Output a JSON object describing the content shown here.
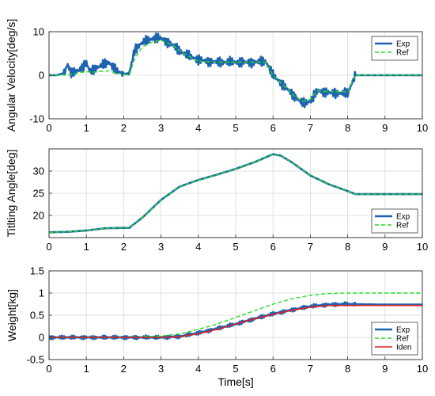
{
  "colors": {
    "exp": "#1f63b0",
    "ref": "#22dd22",
    "iden": "#e02020"
  },
  "chart_data": [
    {
      "type": "line",
      "ylabel": "Angular Velocity[deg/s]",
      "xlabel": "",
      "xlim": [
        0,
        10
      ],
      "ylim": [
        -10,
        10
      ],
      "xticks": [
        "0",
        "1",
        "2",
        "3",
        "4",
        "5",
        "6",
        "7",
        "8",
        "9",
        "10"
      ],
      "yticks": [
        {
          "value": -10,
          "label": "-10"
        },
        {
          "value": 0,
          "label": "0"
        },
        {
          "value": 10,
          "label": "10"
        }
      ],
      "grid": true,
      "legend_position": "top-right",
      "series": [
        {
          "name": "Exp",
          "style": "solid",
          "x": [
            0,
            0.2,
            0.4,
            0.5,
            0.6,
            0.8,
            1.0,
            1.1,
            1.2,
            1.4,
            1.6,
            1.8,
            2.0,
            2.15,
            2.3,
            2.5,
            2.8,
            3.0,
            3.3,
            3.6,
            4.0,
            4.5,
            5.0,
            5.5,
            5.8,
            6.0,
            6.3,
            6.6,
            6.8,
            7.0,
            7.2,
            7.5,
            8.0,
            8.2,
            8.5,
            9.0,
            10.0
          ],
          "y": [
            0,
            0,
            0.5,
            2.5,
            0.3,
            1.2,
            2.8,
            0.8,
            1.5,
            2.2,
            3.0,
            1.0,
            0.3,
            0.5,
            6.0,
            7.5,
            8.5,
            8.5,
            7.0,
            5.0,
            3.5,
            3.0,
            3.0,
            3.0,
            3.2,
            0,
            -2.5,
            -5.0,
            -6.5,
            -6.0,
            -3.5,
            -4.0,
            -4.2,
            0,
            0,
            0,
            0
          ],
          "noise": 2.5
        },
        {
          "name": "Ref",
          "style": "dashed",
          "x": [
            0,
            0.4,
            0.6,
            0.8,
            1.0,
            1.2,
            1.4,
            1.6,
            1.8,
            2.0,
            2.15,
            2.3,
            2.5,
            2.8,
            3.0,
            3.3,
            3.6,
            4.0,
            4.5,
            5.0,
            5.5,
            5.8,
            6.0,
            6.3,
            6.6,
            6.8,
            7.0,
            7.2,
            7.5,
            8.0,
            8.2,
            8.5,
            9.0,
            10.0
          ],
          "y": [
            0,
            0,
            0.2,
            0.6,
            0.8,
            0.7,
            0.9,
            1.0,
            0.5,
            0.2,
            0,
            4.0,
            6.5,
            7.8,
            8.0,
            7.0,
            5.0,
            3.2,
            3.0,
            3.0,
            3.0,
            3.0,
            0,
            -2.5,
            -5.0,
            -6.0,
            -5.5,
            -3.5,
            -3.8,
            -3.8,
            0,
            0,
            0,
            0
          ],
          "noise": 0
        }
      ]
    },
    {
      "type": "line",
      "ylabel": "Titlting Angle[deg]",
      "xlabel": "",
      "xlim": [
        0,
        10
      ],
      "ylim": [
        15,
        35
      ],
      "xticks": [
        "0",
        "1",
        "2",
        "3",
        "4",
        "5",
        "6",
        "7",
        "8",
        "9",
        "10"
      ],
      "yticks": [
        {
          "value": 20,
          "label": "20"
        },
        {
          "value": 25,
          "label": "25"
        },
        {
          "value": 30,
          "label": "30"
        }
      ],
      "grid": true,
      "legend_position": "bottom-right",
      "series": [
        {
          "name": "Exp",
          "style": "solid",
          "x": [
            0,
            0.5,
            1.0,
            1.5,
            2.0,
            2.15,
            2.5,
            3.0,
            3.5,
            4.0,
            4.5,
            5.0,
            5.5,
            6.0,
            6.2,
            6.5,
            7.0,
            7.5,
            8.0,
            8.2,
            9.0,
            10.0
          ],
          "y": [
            16.2,
            16.3,
            16.6,
            17.1,
            17.2,
            17.2,
            19.5,
            23.5,
            26.5,
            28.0,
            29.2,
            30.5,
            32.0,
            33.8,
            33.5,
            32.0,
            29.0,
            27.0,
            25.5,
            24.8,
            24.8,
            24.8
          ],
          "noise": 0
        },
        {
          "name": "Ref",
          "style": "dashed",
          "x": [
            0,
            0.5,
            1.0,
            1.5,
            2.0,
            2.15,
            2.5,
            3.0,
            3.5,
            4.0,
            4.5,
            5.0,
            5.5,
            6.0,
            6.2,
            6.5,
            7.0,
            7.5,
            8.0,
            8.2,
            9.0,
            10.0
          ],
          "y": [
            16.2,
            16.3,
            16.6,
            17.1,
            17.2,
            17.2,
            19.5,
            23.5,
            26.5,
            28.0,
            29.2,
            30.5,
            32.0,
            33.8,
            33.5,
            32.0,
            29.0,
            27.0,
            25.5,
            24.8,
            24.8,
            24.8
          ],
          "noise": 0
        }
      ]
    },
    {
      "type": "line",
      "ylabel": "Weight[kg]",
      "xlabel": "Time[s]",
      "xlim": [
        0,
        10
      ],
      "ylim": [
        -0.5,
        1.5
      ],
      "xticks": [
        "0",
        "1",
        "2",
        "3",
        "4",
        "5",
        "6",
        "7",
        "8",
        "9",
        "10"
      ],
      "yticks": [
        {
          "value": -0.5,
          "label": "-0.5"
        },
        {
          "value": 0,
          "label": "0"
        },
        {
          "value": 0.5,
          "label": "0.5"
        },
        {
          "value": 1.0,
          "label": "1"
        },
        {
          "value": 1.5,
          "label": "1.5"
        }
      ],
      "grid": true,
      "legend_position": "bottom-right",
      "series": [
        {
          "name": "Exp",
          "style": "solid",
          "x": [
            0,
            1,
            2,
            3,
            3.5,
            4,
            4.5,
            5,
            5.5,
            6,
            6.5,
            7,
            7.5,
            8,
            9,
            10
          ],
          "y": [
            0,
            0,
            0,
            0,
            0.02,
            0.1,
            0.2,
            0.3,
            0.42,
            0.53,
            0.62,
            0.7,
            0.74,
            0.75,
            0.74,
            0.74
          ],
          "noise": 0.09
        },
        {
          "name": "Ref",
          "style": "dashed",
          "x": [
            0,
            2,
            3,
            3.5,
            4,
            4.5,
            5,
            5.5,
            6,
            6.5,
            7,
            7.5,
            8,
            8.5,
            9,
            10
          ],
          "y": [
            0,
            0,
            0.03,
            0.08,
            0.18,
            0.3,
            0.45,
            0.6,
            0.75,
            0.87,
            0.95,
            0.99,
            1.0,
            1.0,
            1.0,
            1.0
          ],
          "noise": 0
        },
        {
          "name": "Iden",
          "style": "solid",
          "x": [
            0,
            1,
            2,
            3,
            3.5,
            4,
            4.5,
            5,
            5.5,
            6,
            6.5,
            7,
            7.5,
            8,
            9,
            10
          ],
          "y": [
            0,
            0,
            0,
            0,
            0.02,
            0.08,
            0.18,
            0.3,
            0.42,
            0.52,
            0.61,
            0.68,
            0.72,
            0.72,
            0.72,
            0.72
          ],
          "noise": 0
        }
      ]
    }
  ]
}
